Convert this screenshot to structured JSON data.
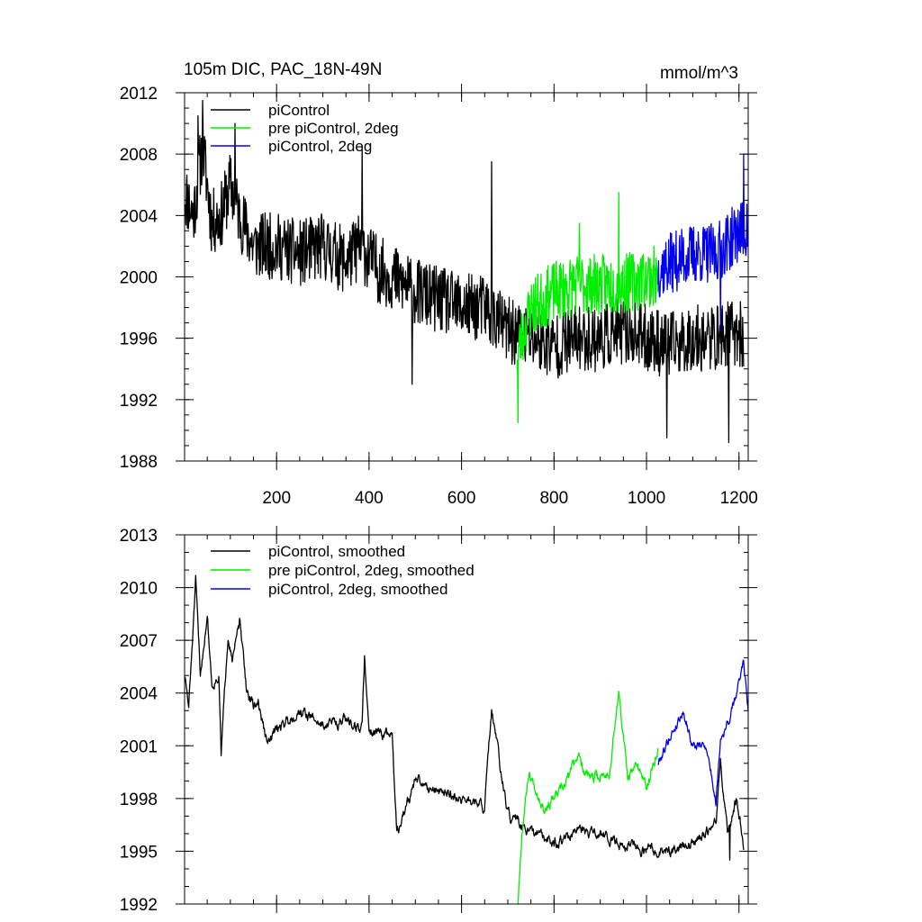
{
  "chart_data": [
    {
      "type": "line",
      "title_left": "105m DIC, PAC_18N-49N",
      "title_right": "mmol/m^3",
      "xlabel": "",
      "ylabel": "",
      "xlim": [
        1,
        1220
      ],
      "ylim": [
        1988,
        2012
      ],
      "xticks": [
        200,
        400,
        600,
        800,
        1000,
        1200
      ],
      "yticks": [
        1988,
        1992,
        1996,
        2000,
        2004,
        2008,
        2012
      ],
      "xtick_labels": [
        "200",
        "400",
        "600",
        "800",
        "1000",
        "1200"
      ],
      "ytick_labels": [
        "1988",
        "1992",
        "1996",
        "2000",
        "2004",
        "2008",
        "2012"
      ],
      "legend_position": "top-left",
      "series": [
        {
          "name": "piControl",
          "color": "#000000",
          "x_start": 1,
          "x_end": 1210,
          "anchors": [
            [
              1,
              2005.5
            ],
            [
              20,
              2004
            ],
            [
              40,
              2008.5
            ],
            [
              60,
              2003.5
            ],
            [
              80,
              2004
            ],
            [
              100,
              2006
            ],
            [
              120,
              2004
            ],
            [
              150,
              2002
            ],
            [
              200,
              2002
            ],
            [
              250,
              2001.5
            ],
            [
              300,
              2002
            ],
            [
              350,
              2001
            ],
            [
              380,
              2002
            ],
            [
              420,
              2000.5
            ],
            [
              450,
              2000
            ],
            [
              500,
              1999
            ],
            [
              550,
              1998.5
            ],
            [
              600,
              1998
            ],
            [
              650,
              1998
            ],
            [
              700,
              1996.5
            ],
            [
              750,
              1996
            ],
            [
              800,
              1995.5
            ],
            [
              850,
              1996
            ],
            [
              900,
              1996
            ],
            [
              950,
              1996.5
            ],
            [
              1000,
              1996
            ],
            [
              1050,
              1995.5
            ],
            [
              1100,
              1996
            ],
            [
              1150,
              1996
            ],
            [
              1200,
              1996.5
            ],
            [
              1210,
              1995.5
            ]
          ],
          "noise_amp": 2.2,
          "spikes": [
            [
              30,
              2010.5
            ],
            [
              40,
              2011.5
            ],
            [
              110,
              2010
            ],
            [
              385,
              2008.5
            ],
            [
              665,
              2007.5
            ],
            [
              493,
              1993
            ],
            [
              1178,
              1989.2
            ],
            [
              1044,
              1989.5
            ]
          ],
          "seed": 11
        },
        {
          "name": "pre piControl, 2deg",
          "color": "#00ee00",
          "x_start": 720,
          "x_end": 1025,
          "anchors": [
            [
              720,
              1995
            ],
            [
              750,
              1998
            ],
            [
              800,
              1999
            ],
            [
              850,
              1999.5
            ],
            [
              900,
              1999.5
            ],
            [
              950,
              1999.5
            ],
            [
              1000,
              2000
            ],
            [
              1025,
              2000
            ]
          ],
          "noise_amp": 2.0,
          "spikes": [
            [
              722,
              1990.5
            ],
            [
              940,
              2005.5
            ],
            [
              855,
              2003.5
            ]
          ],
          "seed": 23
        },
        {
          "name": "piControl, 2deg",
          "color": "#0000ee",
          "x_start": 1025,
          "x_end": 1220,
          "anchors": [
            [
              1025,
              2000.5
            ],
            [
              1060,
              2001
            ],
            [
              1100,
              2001.5
            ],
            [
              1150,
              2001.5
            ],
            [
              1200,
              2003
            ],
            [
              1220,
              2003
            ]
          ],
          "noise_amp": 2.0,
          "spikes": [
            [
              1210,
              2008
            ],
            [
              1160,
              1996.5
            ]
          ],
          "seed": 37
        }
      ]
    },
    {
      "type": "line",
      "title_left": "",
      "title_right": "",
      "xlabel": "",
      "ylabel": "",
      "xlim": [
        1,
        1220
      ],
      "ylim": [
        1992,
        2013
      ],
      "xticks": [
        200,
        400,
        600,
        800,
        1000,
        1200
      ],
      "yticks": [
        1992,
        1995,
        1998,
        2001,
        2004,
        2007,
        2010,
        2013
      ],
      "xtick_labels": [],
      "ytick_labels": [
        "1992",
        "1995",
        "1998",
        "2001",
        "2004",
        "2007",
        "2010",
        "2013"
      ],
      "legend_position": "top-left",
      "series": [
        {
          "name": "piControl, smoothed",
          "color": "#000000",
          "x_start": 1,
          "x_end": 1210,
          "anchors": [
            [
              1,
              2005
            ],
            [
              10,
              2003.2
            ],
            [
              25,
              2010.3
            ],
            [
              35,
              2005
            ],
            [
              50,
              2008.5
            ],
            [
              60,
              2004.5
            ],
            [
              75,
              2005
            ],
            [
              80,
              2000.5
            ],
            [
              95,
              2007.5
            ],
            [
              105,
              2006
            ],
            [
              120,
              2008
            ],
            [
              135,
              2004.2
            ],
            [
              150,
              2003.2
            ],
            [
              160,
              2003.5
            ],
            [
              180,
              2001
            ],
            [
              200,
              2002
            ],
            [
              250,
              2003
            ],
            [
              300,
              2002.2
            ],
            [
              350,
              2002.5
            ],
            [
              385,
              2002
            ],
            [
              390,
              2006
            ],
            [
              400,
              2002
            ],
            [
              450,
              2001.5
            ],
            [
              460,
              1996
            ],
            [
              500,
              1999
            ],
            [
              550,
              1998.5
            ],
            [
              600,
              1998
            ],
            [
              650,
              1997.5
            ],
            [
              665,
              2003
            ],
            [
              700,
              1997
            ],
            [
              750,
              1996
            ],
            [
              800,
              1995.5
            ],
            [
              850,
              1996
            ],
            [
              900,
              1996
            ],
            [
              950,
              1995.5
            ],
            [
              1000,
              1995
            ],
            [
              1050,
              1995
            ],
            [
              1100,
              1995.5
            ],
            [
              1150,
              1996.5
            ],
            [
              1160,
              2000
            ],
            [
              1175,
              1996
            ],
            [
              1195,
              1998
            ],
            [
              1210,
              1995.3
            ]
          ],
          "noise_amp": 0.9,
          "spikes": [
            [
              1180,
              1994.5
            ]
          ],
          "seed": 51
        },
        {
          "name": "pre piControl, 2deg, smoothed",
          "color": "#00ee00",
          "x_start": 722,
          "x_end": 1025,
          "anchors": [
            [
              722,
              1992.1
            ],
            [
              730,
              1996
            ],
            [
              745,
              1999.5
            ],
            [
              780,
              1997.5
            ],
            [
              820,
              1998.5
            ],
            [
              850,
              2000.5
            ],
            [
              880,
              1999
            ],
            [
              920,
              1999.5
            ],
            [
              940,
              2004
            ],
            [
              960,
              1999
            ],
            [
              980,
              2000
            ],
            [
              1000,
              1998.5
            ],
            [
              1025,
              2001
            ]
          ],
          "noise_amp": 0.9,
          "spikes": [],
          "seed": 67
        },
        {
          "name": "piControl, 2deg, smoothed",
          "color": "#0000ee",
          "x_start": 1025,
          "x_end": 1220,
          "anchors": [
            [
              1025,
              2000
            ],
            [
              1050,
              2001.5
            ],
            [
              1080,
              2003
            ],
            [
              1100,
              2001
            ],
            [
              1130,
              2001
            ],
            [
              1150,
              1997.8
            ],
            [
              1160,
              2001.5
            ],
            [
              1180,
              2002.5
            ],
            [
              1200,
              2004.5
            ],
            [
              1210,
              2006
            ],
            [
              1220,
              2003
            ]
          ],
          "noise_amp": 0.8,
          "spikes": [],
          "seed": 79
        }
      ]
    }
  ]
}
